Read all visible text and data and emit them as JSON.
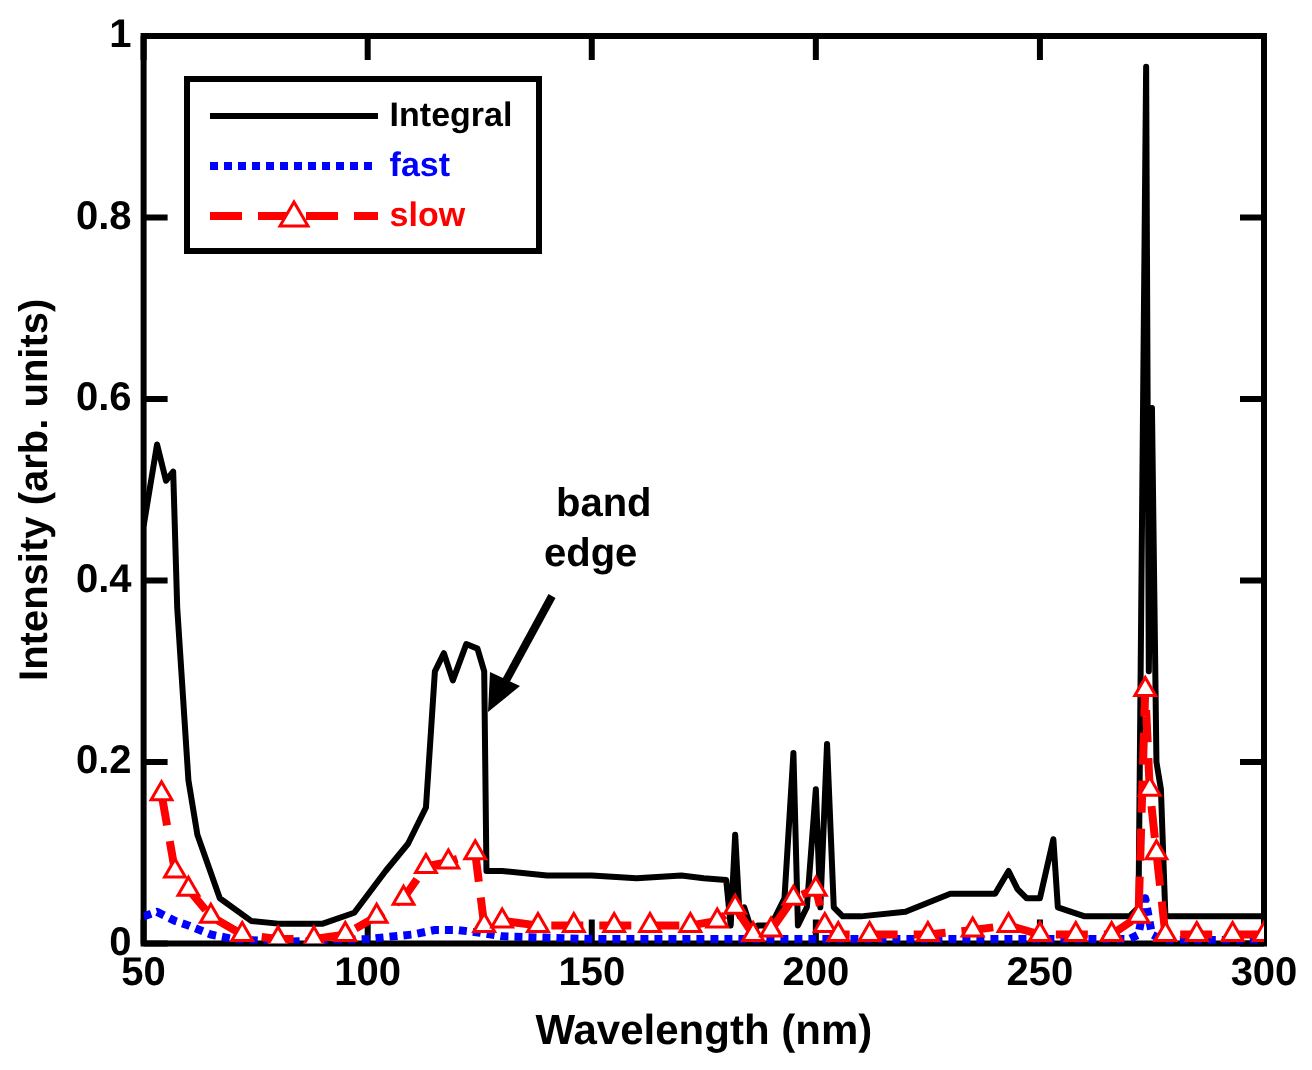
{
  "chart_data": {
    "type": "line",
    "xlabel": "Wavelength (nm)",
    "ylabel": "Intensity (arb. units)",
    "xlim": [
      50,
      300
    ],
    "xticks": [
      50,
      100,
      150,
      200,
      250,
      300
    ],
    "ylim": [
      0,
      1
    ],
    "yticks": [
      0,
      0.2,
      0.4,
      0.6,
      0.8,
      1
    ],
    "grid": false,
    "legend": "top left",
    "annotations": [
      "band edge"
    ],
    "series": [
      {
        "name": "Integral",
        "color": "#000000",
        "line_style": "solid",
        "marker": "none",
        "x": [
          50,
          51,
          53,
          55,
          56.6,
          57.5,
          60,
          62,
          67,
          74,
          80,
          90,
          97,
          104,
          109,
          113,
          115,
          117,
          119,
          122,
          124.5,
          126,
          126.5,
          130,
          140,
          150,
          160,
          170,
          175,
          180,
          181,
          182,
          183,
          184,
          186,
          187,
          190,
          193,
          195,
          196,
          198,
          200,
          201,
          202.5,
          204,
          206,
          210,
          220,
          230,
          240,
          243,
          244,
          245,
          247,
          250,
          253,
          254,
          260,
          270,
          272,
          273.7,
          274.3,
          275,
          276,
          277,
          278,
          280,
          290,
          300
        ],
        "values": [
          0.46,
          0.49,
          0.55,
          0.51,
          0.52,
          0.37,
          0.18,
          0.12,
          0.05,
          0.025,
          0.022,
          0.022,
          0.034,
          0.08,
          0.11,
          0.15,
          0.3,
          0.32,
          0.29,
          0.33,
          0.325,
          0.3,
          0.08,
          0.08,
          0.075,
          0.075,
          0.072,
          0.075,
          0.072,
          0.07,
          0.02,
          0.12,
          0.03,
          0.04,
          0.01,
          0.02,
          0.02,
          0.05,
          0.21,
          0.02,
          0.04,
          0.17,
          0.04,
          0.22,
          0.04,
          0.03,
          0.03,
          0.035,
          0.055,
          0.055,
          0.08,
          0.07,
          0.06,
          0.05,
          0.05,
          0.115,
          0.04,
          0.03,
          0.03,
          0.04,
          0.966,
          0.3,
          0.59,
          0.2,
          0.17,
          0.03,
          0.03,
          0.03,
          0.03
        ]
      },
      {
        "name": "fast",
        "color": "#0000ff",
        "line_style": "dotted",
        "marker": "none",
        "x": [
          50,
          53,
          57,
          60,
          65,
          70,
          80,
          90,
          100,
          110,
          115,
          120,
          125,
          130,
          150,
          200,
          250,
          270,
          272,
          273.5,
          275,
          277,
          280,
          300
        ],
        "values": [
          0.03,
          0.035,
          0.025,
          0.02,
          0.01,
          0.005,
          0.002,
          0.003,
          0.005,
          0.01,
          0.015,
          0.015,
          0.012,
          0.008,
          0.005,
          0.005,
          0.005,
          0.005,
          0.01,
          0.05,
          0.01,
          0.005,
          0.004,
          0.004
        ]
      },
      {
        "name": "slow",
        "color": "#ff0000",
        "line_style": "dashed",
        "marker": "triangle",
        "x": [
          54,
          57,
          60,
          65,
          72,
          80,
          88,
          95,
          102,
          108,
          113,
          118,
          124,
          126,
          130,
          138,
          146,
          155,
          163,
          172,
          178,
          182,
          186,
          190,
          195,
          200,
          202,
          205,
          212,
          225,
          235,
          243,
          250,
          258,
          266,
          272,
          273.5,
          274.5,
          276,
          278,
          285,
          293,
          300
        ],
        "values": [
          0.165,
          0.08,
          0.06,
          0.03,
          0.01,
          0.005,
          0.005,
          0.01,
          0.03,
          0.05,
          0.085,
          0.09,
          0.1,
          0.02,
          0.025,
          0.02,
          0.02,
          0.02,
          0.02,
          0.02,
          0.025,
          0.04,
          0.01,
          0.015,
          0.05,
          0.06,
          0.02,
          0.01,
          0.01,
          0.01,
          0.015,
          0.02,
          0.01,
          0.01,
          0.01,
          0.03,
          0.28,
          0.17,
          0.1,
          0.01,
          0.01,
          0.01,
          0.01
        ]
      }
    ]
  }
}
